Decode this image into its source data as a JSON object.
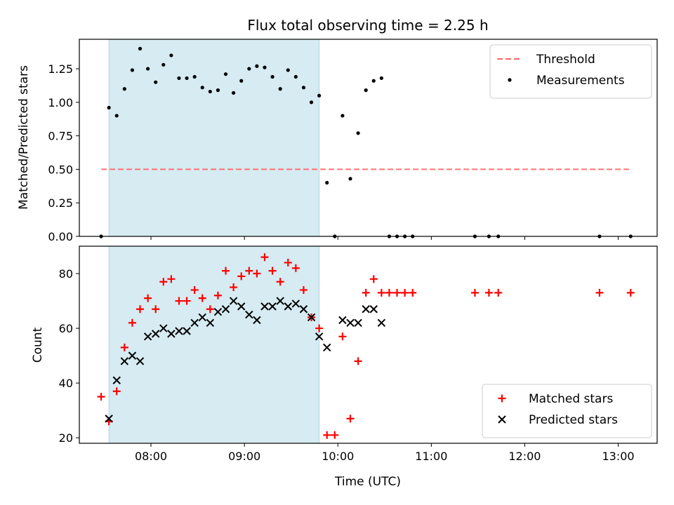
{
  "chart_data": [
    {
      "type": "scatter",
      "title": "Flux total observing time = 2.25 h",
      "xlabel": "",
      "ylabel": "Matched/Predicted stars",
      "ylim": [
        0,
        1.47
      ],
      "xlim": [
        "07:14",
        "13:25"
      ],
      "x_ticks": [
        "08:00",
        "09:00",
        "10:00",
        "11:00",
        "12:00",
        "13:00"
      ],
      "y_ticks": [
        "0.00",
        "0.25",
        "0.50",
        "0.75",
        "1.00",
        "1.25"
      ],
      "grid": false,
      "legend_position": "top-right",
      "shaded_interval": [
        "07:33",
        "09:48"
      ],
      "threshold": {
        "name": "Threshold",
        "value": 0.5,
        "x_start": "07:28",
        "x_end": "13:08",
        "color": "#ff6666"
      },
      "series": [
        {
          "name": "Measurements",
          "color": "#000000",
          "marker": "dot",
          "points": [
            [
              "07:28",
              0.0
            ],
            [
              "07:33",
              0.96
            ],
            [
              "07:38",
              0.9
            ],
            [
              "07:43",
              1.1
            ],
            [
              "07:48",
              1.24
            ],
            [
              "07:53",
              1.4
            ],
            [
              "07:58",
              1.25
            ],
            [
              "08:03",
              1.15
            ],
            [
              "08:08",
              1.28
            ],
            [
              "08:13",
              1.35
            ],
            [
              "08:18",
              1.18
            ],
            [
              "08:23",
              1.18
            ],
            [
              "08:28",
              1.19
            ],
            [
              "08:33",
              1.11
            ],
            [
              "08:38",
              1.08
            ],
            [
              "08:43",
              1.09
            ],
            [
              "08:48",
              1.21
            ],
            [
              "08:53",
              1.07
            ],
            [
              "08:58",
              1.16
            ],
            [
              "09:03",
              1.25
            ],
            [
              "09:08",
              1.27
            ],
            [
              "09:13",
              1.26
            ],
            [
              "09:18",
              1.19
            ],
            [
              "09:23",
              1.1
            ],
            [
              "09:28",
              1.24
            ],
            [
              "09:33",
              1.19
            ],
            [
              "09:38",
              1.11
            ],
            [
              "09:43",
              1.0
            ],
            [
              "09:48",
              1.05
            ],
            [
              "09:53",
              0.4
            ],
            [
              "09:58",
              0.0
            ],
            [
              "10:03",
              0.9
            ],
            [
              "10:08",
              0.43
            ],
            [
              "10:13",
              0.77
            ],
            [
              "10:18",
              1.09
            ],
            [
              "10:23",
              1.16
            ],
            [
              "10:28",
              1.18
            ],
            [
              "10:33",
              0.0
            ],
            [
              "10:38",
              0.0
            ],
            [
              "10:43",
              0.0
            ],
            [
              "10:48",
              0.0
            ],
            [
              "11:28",
              0.0
            ],
            [
              "11:37",
              0.0
            ],
            [
              "11:43",
              0.0
            ],
            [
              "12:48",
              0.0
            ],
            [
              "13:08",
              0.0
            ]
          ]
        }
      ]
    },
    {
      "type": "scatter",
      "title": "",
      "xlabel": "Time (UTC)",
      "ylabel": "Count",
      "ylim": [
        18,
        90
      ],
      "xlim": [
        "07:14",
        "13:25"
      ],
      "x_ticks": [
        "08:00",
        "09:00",
        "10:00",
        "11:00",
        "12:00",
        "13:00"
      ],
      "y_ticks": [
        "20",
        "40",
        "60",
        "80"
      ],
      "grid": false,
      "legend_position": "bottom-right",
      "shaded_interval": [
        "07:33",
        "09:48"
      ],
      "series": [
        {
          "name": "Matched stars",
          "color": "#ff0000",
          "marker": "plus",
          "points": [
            [
              "07:28",
              35
            ],
            [
              "07:33",
              26
            ],
            [
              "07:38",
              37
            ],
            [
              "07:43",
              53
            ],
            [
              "07:48",
              62
            ],
            [
              "07:53",
              67
            ],
            [
              "07:58",
              71
            ],
            [
              "08:03",
              67
            ],
            [
              "08:08",
              77
            ],
            [
              "08:13",
              78
            ],
            [
              "08:18",
              70
            ],
            [
              "08:23",
              70
            ],
            [
              "08:28",
              74
            ],
            [
              "08:33",
              71
            ],
            [
              "08:38",
              67
            ],
            [
              "08:43",
              72
            ],
            [
              "08:48",
              81
            ],
            [
              "08:53",
              75
            ],
            [
              "08:58",
              79
            ],
            [
              "09:03",
              81
            ],
            [
              "09:08",
              80
            ],
            [
              "09:13",
              86
            ],
            [
              "09:18",
              81
            ],
            [
              "09:23",
              77
            ],
            [
              "09:28",
              84
            ],
            [
              "09:33",
              82
            ],
            [
              "09:38",
              74
            ],
            [
              "09:43",
              64
            ],
            [
              "09:48",
              60
            ],
            [
              "09:53",
              21
            ],
            [
              "09:58",
              21
            ],
            [
              "10:03",
              57
            ],
            [
              "10:08",
              27
            ],
            [
              "10:13",
              48
            ],
            [
              "10:18",
              73
            ],
            [
              "10:23",
              78
            ],
            [
              "10:28",
              73
            ],
            [
              "10:33",
              73
            ],
            [
              "10:38",
              73
            ],
            [
              "10:43",
              73
            ],
            [
              "10:48",
              73
            ],
            [
              "11:28",
              73
            ],
            [
              "11:37",
              73
            ],
            [
              "11:43",
              73
            ],
            [
              "12:48",
              73
            ],
            [
              "13:08",
              73
            ]
          ]
        },
        {
          "name": "Predicted stars",
          "color": "#000000",
          "marker": "x",
          "points": [
            [
              "07:33",
              27
            ],
            [
              "07:38",
              41
            ],
            [
              "07:43",
              48
            ],
            [
              "07:48",
              50
            ],
            [
              "07:53",
              48
            ],
            [
              "07:58",
              57
            ],
            [
              "08:03",
              58
            ],
            [
              "08:08",
              60
            ],
            [
              "08:13",
              58
            ],
            [
              "08:18",
              59
            ],
            [
              "08:23",
              59
            ],
            [
              "08:28",
              62
            ],
            [
              "08:33",
              64
            ],
            [
              "08:38",
              62
            ],
            [
              "08:43",
              66
            ],
            [
              "08:48",
              67
            ],
            [
              "08:53",
              70
            ],
            [
              "08:58",
              68
            ],
            [
              "09:03",
              65
            ],
            [
              "09:08",
              63
            ],
            [
              "09:13",
              68
            ],
            [
              "09:18",
              68
            ],
            [
              "09:23",
              70
            ],
            [
              "09:28",
              68
            ],
            [
              "09:33",
              69
            ],
            [
              "09:38",
              67
            ],
            [
              "09:43",
              64
            ],
            [
              "09:48",
              57
            ],
            [
              "09:53",
              53
            ],
            [
              "10:03",
              63
            ],
            [
              "10:08",
              62
            ],
            [
              "10:13",
              62
            ],
            [
              "10:18",
              67
            ],
            [
              "10:23",
              67
            ],
            [
              "10:28",
              62
            ]
          ]
        }
      ]
    }
  ]
}
